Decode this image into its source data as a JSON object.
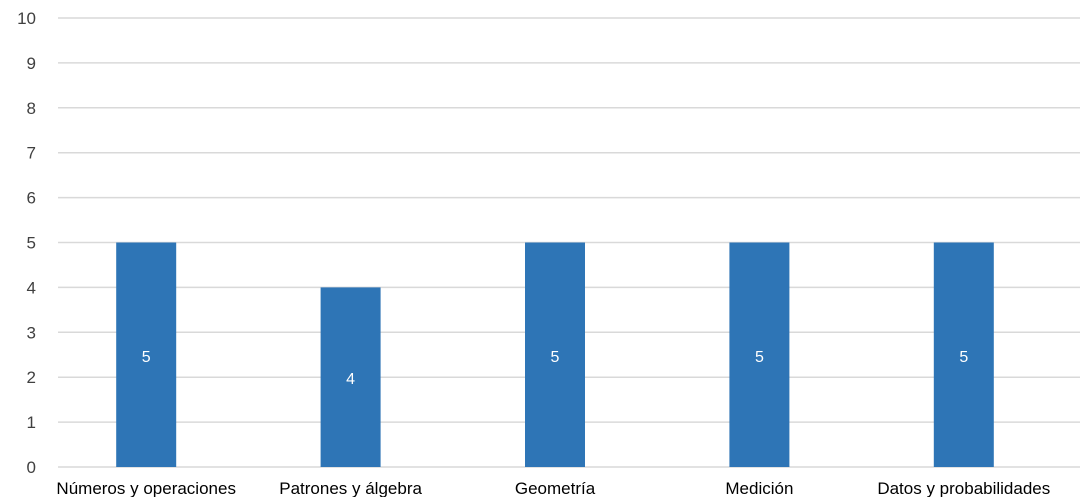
{
  "chart_data": {
    "type": "bar",
    "categories": [
      "Números y operaciones",
      "Patrones y álgebra",
      "Geometría",
      "Medición",
      "Datos y probabilidades"
    ],
    "values": [
      5,
      4,
      5,
      5,
      5
    ],
    "data_labels": [
      "5",
      "4",
      "5",
      "5",
      "5"
    ],
    "ylim": [
      0,
      10
    ],
    "yticks": [
      "0",
      "1",
      "2",
      "3",
      "4",
      "5",
      "6",
      "7",
      "8",
      "9",
      "10"
    ],
    "grid": true,
    "legend": "none",
    "bar_color": "#2E75B6",
    "grid_color": "#D9D9D9",
    "label_color": "#ffffff",
    "tick_color": "#404040"
  }
}
